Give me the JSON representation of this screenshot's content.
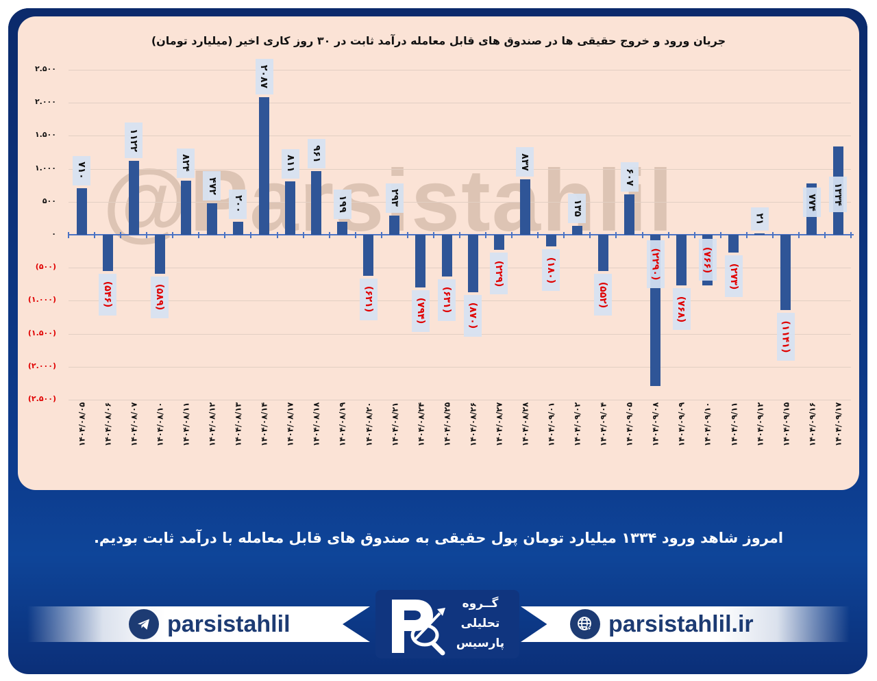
{
  "chart_data": {
    "type": "bar",
    "title": "جریان ورود و خروج حقیقی ها در صندوق های قابل معامله درآمد ثابت در ۳۰ روز کاری اخیر (میلیارد تومان)",
    "xlabel": "",
    "ylabel": "",
    "ylim": [
      -2500,
      2500
    ],
    "grid": true,
    "legend": null,
    "y_ticks": [
      2500,
      2000,
      1500,
      1000,
      500,
      0,
      -500,
      -1000,
      -1500,
      -2000,
      -2500
    ],
    "y_tick_labels": [
      "۲.۵۰۰",
      "۲.۰۰۰",
      "۱.۵۰۰",
      "۱.۰۰۰",
      "۵۰۰",
      "۰",
      "(۵۰۰)",
      "(۱.۰۰۰)",
      "(۱.۵۰۰)",
      "(۲.۰۰۰)",
      "(۲.۵۰۰)"
    ],
    "categories": [
      "1404/08/05",
      "1404/08/06",
      "1404/08/07",
      "1404/08/10",
      "1404/08/11",
      "1404/08/12",
      "1404/08/13",
      "1404/08/14",
      "1404/08/17",
      "1404/08/18",
      "1404/08/19",
      "1404/08/20",
      "1404/08/21",
      "1404/08/24",
      "1404/08/25",
      "1404/08/26",
      "1404/08/27",
      "1404/08/28",
      "1404/09/01",
      "1404/09/02",
      "1404/09/04",
      "1404/09/05",
      "1404/09/08",
      "1404/09/09",
      "1404/09/10",
      "1404/09/11",
      "1404/09/12",
      "1404/09/15",
      "1404/09/16",
      "1404/09/17"
    ],
    "category_labels": [
      "۱۴۰۴/۰۸/۰۵",
      "۱۴۰۴/۰۸/۰۶",
      "۱۴۰۴/۰۸/۰۷",
      "۱۴۰۴/۰۸/۱۰",
      "۱۴۰۴/۰۸/۱۱",
      "۱۴۰۴/۰۸/۱۲",
      "۱۴۰۴/۰۸/۱۳",
      "۱۴۰۴/۰۸/۱۴",
      "۱۴۰۴/۰۸/۱۷",
      "۱۴۰۴/۰۸/۱۸",
      "۱۴۰۴/۰۸/۱۹",
      "۱۴۰۴/۰۸/۲۰",
      "۱۴۰۴/۰۸/۲۱",
      "۱۴۰۴/۰۸/۲۴",
      "۱۴۰۴/۰۸/۲۵",
      "۱۴۰۴/۰۸/۲۶",
      "۱۴۰۴/۰۸/۲۷",
      "۱۴۰۴/۰۸/۲۸",
      "۱۴۰۴/۰۹/۰۱",
      "۱۴۰۴/۰۹/۰۲",
      "۱۴۰۴/۰۹/۰۴",
      "۱۴۰۴/۰۹/۰۵",
      "۱۴۰۴/۰۹/۰۸",
      "۱۴۰۴/۰۹/۰۹",
      "۱۴۰۴/۰۹/۱۰",
      "۱۴۰۴/۰۹/۱۱",
      "۱۴۰۴/۰۹/۱۲",
      "۱۴۰۴/۰۹/۱۵",
      "۱۴۰۴/۰۹/۱۶",
      "۱۴۰۴/۰۹/۱۷"
    ],
    "values": [
      710,
      -546,
      1122,
      -589,
      824,
      472,
      200,
      2087,
      811,
      961,
      199,
      -621,
      293,
      -794,
      -631,
      -870,
      -229,
      837,
      -180,
      135,
      -552,
      607,
      -2290,
      -768,
      -766,
      -273,
      21,
      -1141,
      774,
      1334
    ],
    "value_labels": [
      "۷۱۰",
      "(۵۴۶)",
      "۱۱۲۲",
      "(۵۸۹)",
      "۸۲۴",
      "۴۷۲",
      "۲۰۰",
      "۲۰۸۷",
      "۸۱۱",
      "۹۶۱",
      "۱۹۹",
      "(۶۲۱)",
      "۲۹۳",
      "(۷۹۴)",
      "(۶۳۱)",
      "(۸۷۰)",
      "(۲۲۹)",
      "۸۳۷",
      "(۱۸۰)",
      "۱۳۵",
      "(۵۵۲)",
      "۶۰۷",
      "(۲۲۹۰)",
      "(۷۶۸)",
      "(۷۶۶)",
      "(۲۷۳)",
      "۲۱",
      "(۱۱۴۱)",
      "۷۷۴",
      "۱۳۳۴"
    ],
    "colors": {
      "bar": "#2F5597",
      "positive_label": "#111111",
      "negative_label": "#E00000",
      "label_box": "#D6E2F2",
      "background": "#FBE3D6"
    }
  },
  "watermark": "@Parsistahlil",
  "summary": "امروز شاهد ورود ۱۳۳۴ میلیارد تومان پول حقیقی به صندوق های قابل معامله با درآمد ثابت بودیم.",
  "footer": {
    "telegram": {
      "icon": "telegram-icon",
      "label": "parsistahlil"
    },
    "website": {
      "icon": "globe-icon",
      "label": "parsistahlil.ir"
    },
    "logo": {
      "line1": "گــروه",
      "line2": "تحلیلی",
      "line3": "پارسیس"
    }
  }
}
